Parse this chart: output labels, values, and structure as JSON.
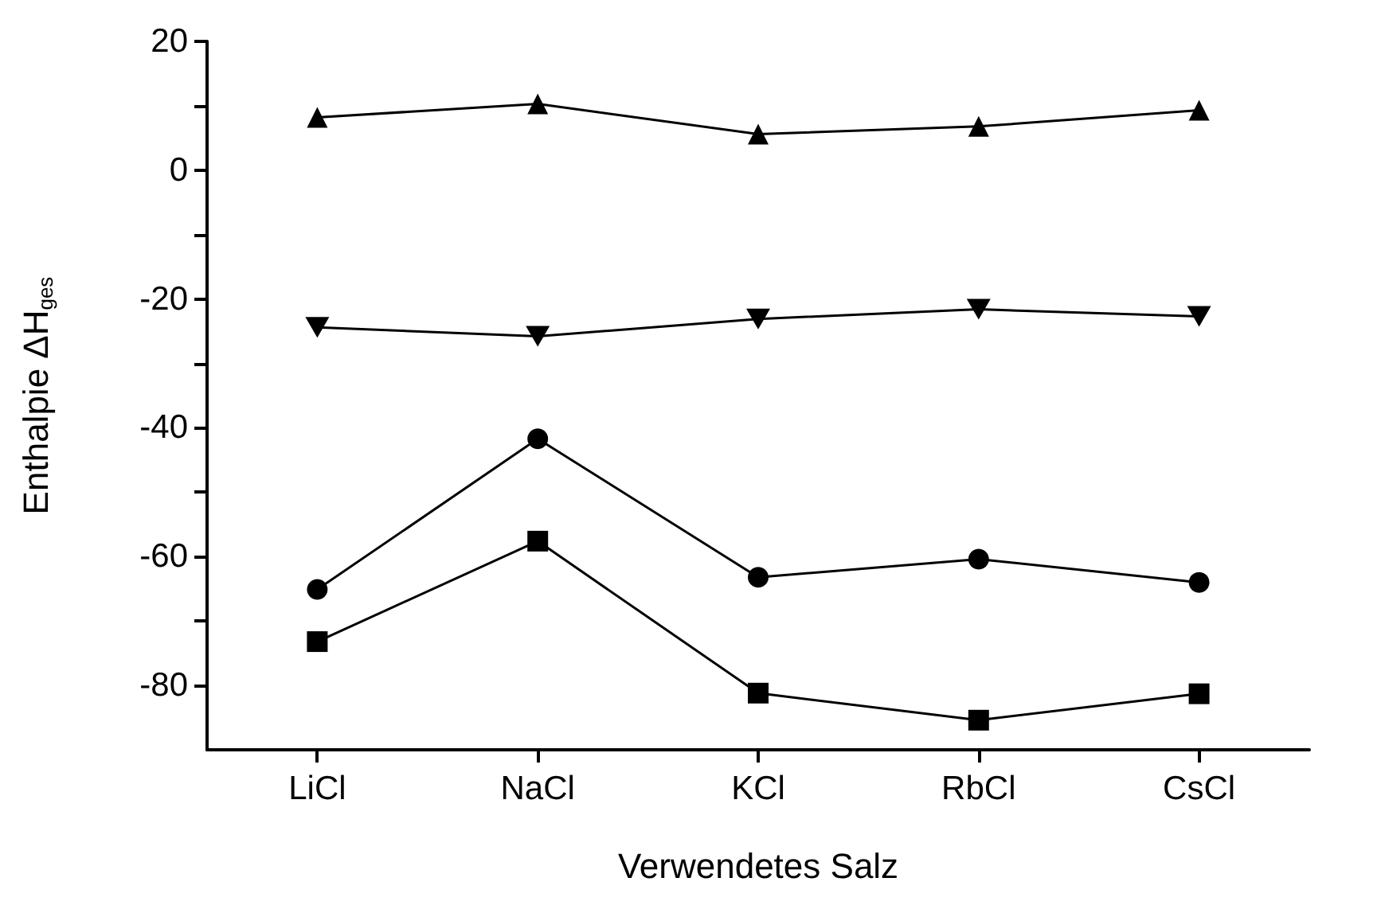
{
  "chart_data": {
    "type": "line",
    "xlabel": "Verwendetes Salz",
    "ylabel": "Enthalpie ΔH$_{ges}$",
    "categories": [
      "LiCl",
      "NaCl",
      "KCl",
      "RbCl",
      "CsCl"
    ],
    "series": [
      {
        "color": "#000000",
        "marker": "triangle",
        "values": [
          8.2,
          10.3,
          5.6,
          6.8,
          9.3
        ]
      },
      {
        "color": "#000000",
        "marker": "triangle-down",
        "values": [
          -24.4,
          -25.8,
          -23.1,
          -21.6,
          -22.7
        ]
      },
      {
        "color": "#000000",
        "marker": "circle",
        "values": [
          -65.1,
          -41.7,
          -63.2,
          -60.4,
          -64.0
        ]
      },
      {
        "color": "#000000",
        "marker": "square",
        "values": [
          -73.2,
          -57.6,
          -81.2,
          -85.4,
          -81.3
        ]
      }
    ],
    "ylim": [
      -90,
      20
    ],
    "yticks": [
      20,
      {
        "value": 10,
        "label": null
      },
      0,
      {
        "value": -10,
        "label": null
      },
      -20,
      {
        "value": -30,
        "label": null
      },
      -40,
      {
        "value": -50,
        "label": null
      },
      -60,
      {
        "value": -70,
        "label": null
      },
      -80
    ],
    "grid": false,
    "line_style": "solid"
  }
}
